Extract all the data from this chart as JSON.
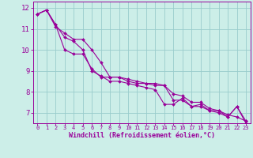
{
  "title": "",
  "xlabel": "Windchill (Refroidissement éolien,°C)",
  "bg_color": "#cceee8",
  "line_color": "#990099",
  "grid_color": "#99cccc",
  "series1_y": [
    11.7,
    11.9,
    11.2,
    10.0,
    9.8,
    9.8,
    9.1,
    8.7,
    8.7,
    8.7,
    8.5,
    8.4,
    8.4,
    8.3,
    8.3,
    7.6,
    7.6,
    7.3,
    7.4,
    7.1,
    7.1,
    6.8,
    7.3,
    6.6
  ],
  "series2_y": [
    11.7,
    11.9,
    11.1,
    10.8,
    10.5,
    10.5,
    10.0,
    9.4,
    8.7,
    8.7,
    8.6,
    8.5,
    8.4,
    8.4,
    8.3,
    7.9,
    7.8,
    7.5,
    7.5,
    7.2,
    7.1,
    6.9,
    6.8,
    6.6
  ],
  "series3_y": [
    11.7,
    11.9,
    11.2,
    10.6,
    10.4,
    10.0,
    9.0,
    8.75,
    8.5,
    8.5,
    8.4,
    8.3,
    8.2,
    8.1,
    7.4,
    7.4,
    7.7,
    7.3,
    7.3,
    7.1,
    7.0,
    6.8,
    7.3,
    6.5
  ],
  "ylim": [
    6.5,
    12.3
  ],
  "yticks": [
    7,
    8,
    9,
    10,
    11,
    12
  ],
  "xlim": [
    -0.5,
    23.5
  ],
  "xticks": [
    0,
    1,
    2,
    3,
    4,
    5,
    6,
    7,
    8,
    9,
    10,
    11,
    12,
    13,
    14,
    15,
    16,
    17,
    18,
    19,
    20,
    21,
    22,
    23
  ],
  "xlabel_fontsize": 6.0,
  "xtick_fontsize": 5.0,
  "ytick_fontsize": 6.5
}
